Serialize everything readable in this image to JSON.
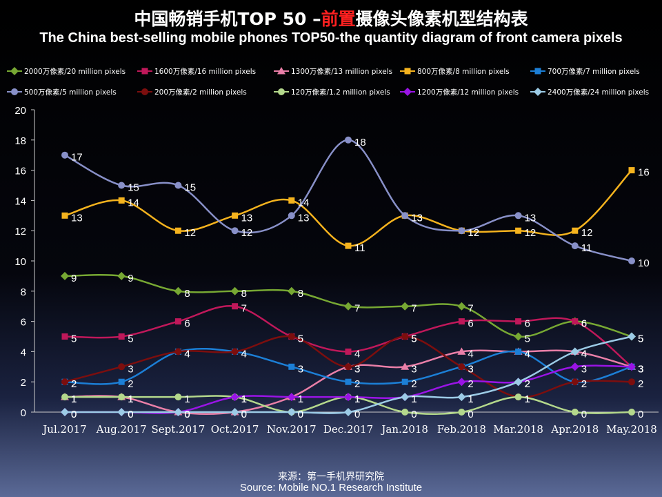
{
  "title": {
    "cn_prefix": "中国畅销手机TOP 50 –",
    "cn_highlight": "前置",
    "cn_suffix": "摄像头像素机型结构表",
    "en": "The China best-selling mobile phones TOP50-the quantity diagram of front camera pixels"
  },
  "source": {
    "cn": "来源：第一手机界研究院",
    "en": "Source: Mobile NO.1 Research Institute"
  },
  "chart_data": {
    "type": "line",
    "ylim": [
      0,
      20
    ],
    "yticks": [
      0,
      2,
      4,
      6,
      8,
      10,
      12,
      14,
      16,
      18,
      20
    ],
    "categories": [
      "Jul.2017",
      "Aug.2017",
      "Sept.2017",
      "Oct.2017",
      "Nov.2017",
      "Dec.2017",
      "Jan.2018",
      "Feb.2018",
      "Mar.2018",
      "Apr.2018",
      "May.2018"
    ],
    "series": [
      {
        "name": "2000万像素/20 million pixels",
        "color": "#77a833",
        "marker": "diamond",
        "values": [
          9,
          9,
          8,
          8,
          8,
          7,
          7,
          7,
          5,
          6,
          5
        ]
      },
      {
        "name": "1600万像素/16 million pixels",
        "color": "#c0185a",
        "marker": "square",
        "values": [
          5,
          5,
          6,
          7,
          5,
          4,
          5,
          6,
          6,
          6,
          3
        ]
      },
      {
        "name": "1300万像素/13 million pixels",
        "color": "#ea7fa8",
        "marker": "triangle",
        "values": [
          1,
          1,
          0,
          0,
          1,
          3,
          3,
          4,
          4,
          4,
          3
        ]
      },
      {
        "name": "800万像素/8 million pixels",
        "color": "#f5b31e",
        "marker": "square",
        "values": [
          13,
          14,
          12,
          13,
          14,
          11,
          13,
          12,
          12,
          12,
          16
        ]
      },
      {
        "name": "700万像素/7 million pixels",
        "color": "#1c7fd6",
        "marker": "square",
        "values": [
          2,
          2,
          4,
          4,
          3,
          2,
          2,
          3,
          4,
          2,
          3
        ]
      },
      {
        "name": "500万像素/5 million pixels",
        "color": "#8890c8",
        "marker": "circle",
        "values": [
          17,
          15,
          15,
          12,
          13,
          18,
          13,
          12,
          13,
          11,
          10
        ]
      },
      {
        "name": "200万像素/2 million pixels",
        "color": "#7c0e0e",
        "marker": "circle",
        "values": [
          2,
          3,
          4,
          4,
          5,
          3,
          5,
          3,
          1,
          2,
          2
        ]
      },
      {
        "name": "120万像素/1.2 million pixels",
        "color": "#b4d88c",
        "marker": "circle",
        "values": [
          1,
          1,
          1,
          1,
          0,
          1,
          0,
          0,
          1,
          0,
          0
        ]
      },
      {
        "name": "1200万像素/12 million pixels",
        "color": "#9a14e6",
        "marker": "diamond",
        "values": [
          0,
          0,
          0,
          1,
          1,
          1,
          1,
          2,
          2,
          3,
          3
        ]
      },
      {
        "name": "2400万像素/24 million pixels",
        "color": "#9ccbe6",
        "marker": "diamond",
        "values": [
          0,
          0,
          0,
          0,
          0,
          0,
          1,
          1,
          2,
          4,
          5
        ]
      }
    ]
  }
}
